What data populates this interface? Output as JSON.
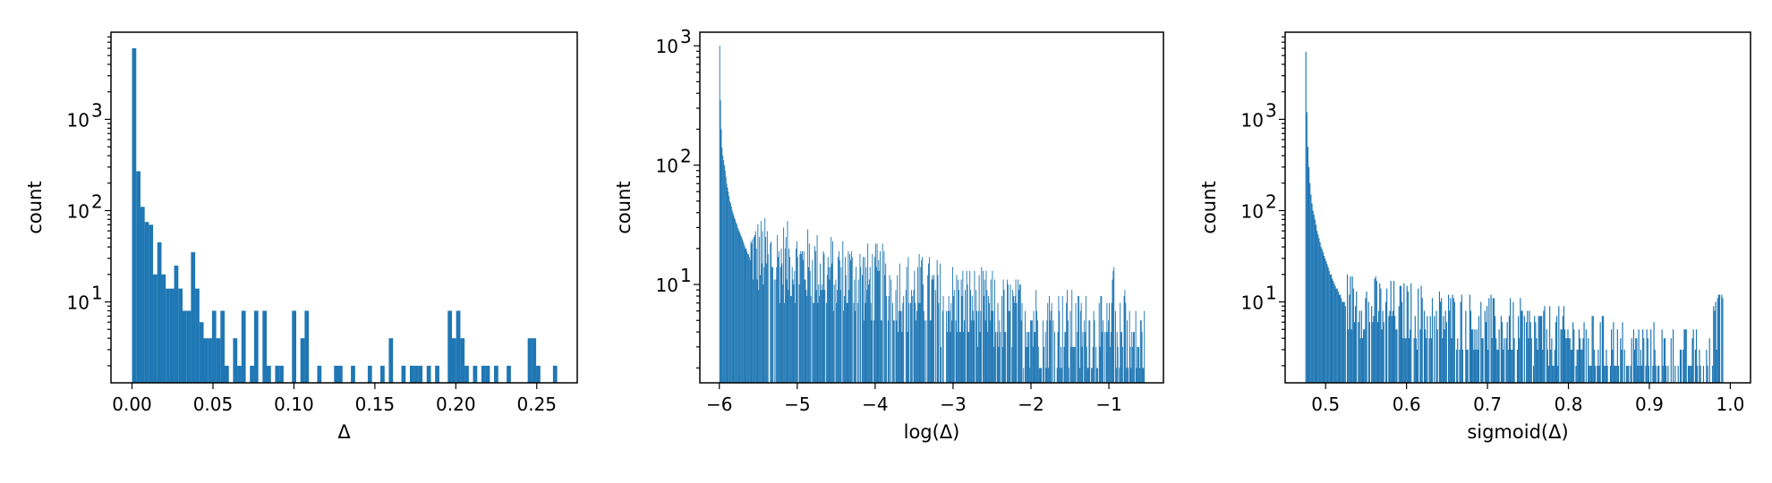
{
  "chart_data": [
    {
      "type": "bar",
      "kind": "histogram",
      "xlabel": "Δ",
      "ylabel": "count",
      "xlim": [
        -0.013,
        0.275
      ],
      "ylim": [
        1.3,
        9000
      ],
      "yscale": "log",
      "xticks": [
        {
          "value": 0.0,
          "label": "0.00"
        },
        {
          "value": 0.05,
          "label": "0.05"
        },
        {
          "value": 0.1,
          "label": "0.10"
        },
        {
          "value": 0.15,
          "label": "0.15"
        },
        {
          "value": 0.2,
          "label": "0.20"
        },
        {
          "value": 0.25,
          "label": "0.25"
        }
      ],
      "yticks": [
        {
          "value": 10,
          "label": "10",
          "exponent": "1"
        },
        {
          "value": 100,
          "label": "10",
          "exponent": "2"
        },
        {
          "value": 1000,
          "label": "10",
          "exponent": "3"
        }
      ],
      "bin_start": 0.0,
      "bin_width": 0.0026,
      "counts": [
        6000,
        270,
        110,
        75,
        70,
        20,
        45,
        20,
        14,
        14,
        25,
        14,
        8,
        8,
        35,
        14,
        6,
        4,
        4,
        8,
        4,
        8,
        2,
        1,
        4,
        2,
        8,
        1,
        2,
        8,
        1,
        8,
        2,
        1,
        2,
        2,
        1,
        1,
        8,
        1,
        4,
        8,
        1,
        1,
        2,
        1,
        1,
        1,
        2,
        2,
        1,
        1,
        2,
        1,
        1,
        1,
        2,
        1,
        1,
        2,
        1,
        4,
        1,
        1,
        2,
        1,
        2,
        2,
        2,
        1,
        2,
        1,
        2,
        1,
        1,
        8,
        4,
        8,
        4,
        2,
        1,
        2,
        1,
        2,
        2,
        1,
        2,
        1,
        1,
        2,
        1,
        1,
        1,
        1,
        4,
        4,
        2,
        1,
        1,
        1,
        2,
        1,
        1
      ]
    },
    {
      "type": "bar",
      "kind": "histogram",
      "xlabel": "log(Δ)",
      "ylabel": "count",
      "xlim": [
        -6.25,
        -0.3
      ],
      "ylim": [
        1.5,
        1300
      ],
      "yscale": "log",
      "xticks": [
        {
          "value": -6,
          "label": "−6"
        },
        {
          "value": -5,
          "label": "−5"
        },
        {
          "value": -4,
          "label": "−4"
        },
        {
          "value": -3,
          "label": "−3"
        },
        {
          "value": -2,
          "label": "−2"
        },
        {
          "value": -1,
          "label": "−1"
        }
      ],
      "yticks": [
        {
          "value": 10,
          "label": "10",
          "exponent": "1"
        },
        {
          "value": 100,
          "label": "10",
          "exponent": "2"
        },
        {
          "value": 1000,
          "label": "10",
          "exponent": "3"
        }
      ],
      "bin_start": -6.0,
      "bin_width": 0.01,
      "counts": [
        1000,
        350,
        200,
        140,
        120,
        110,
        100,
        90,
        80,
        70,
        65,
        60,
        55,
        50,
        48,
        45,
        42,
        40,
        38,
        36,
        35,
        33,
        32,
        30,
        29,
        28,
        27,
        26,
        25,
        24,
        23,
        22,
        21,
        20,
        20,
        19,
        18,
        18,
        17,
        16
      ],
      "tail_range": [
        -5.6,
        -0.55
      ],
      "tail_start_level": 18,
      "tail_end_level": 3,
      "tail_bumps": [
        {
          "x": -0.95,
          "level": 14
        },
        {
          "x": -0.8,
          "level": 10
        }
      ]
    },
    {
      "type": "bar",
      "kind": "histogram",
      "xlabel": "sigmoid(Δ)",
      "ylabel": "count",
      "xlim": [
        0.45,
        1.025
      ],
      "ylim": [
        1.3,
        9000
      ],
      "yscale": "log",
      "xticks": [
        {
          "value": 0.5,
          "label": "0.5"
        },
        {
          "value": 0.6,
          "label": "0.6"
        },
        {
          "value": 0.7,
          "label": "0.7"
        },
        {
          "value": 0.8,
          "label": "0.8"
        },
        {
          "value": 0.9,
          "label": "0.9"
        },
        {
          "value": 1.0,
          "label": "1.0"
        }
      ],
      "yticks": [
        {
          "value": 10,
          "label": "10",
          "exponent": "1"
        },
        {
          "value": 100,
          "label": "10",
          "exponent": "2"
        },
        {
          "value": 1000,
          "label": "10",
          "exponent": "3"
        }
      ],
      "bin_start": 0.475,
      "bin_width": 0.00125,
      "counts": [
        5500,
        1200,
        500,
        300,
        200,
        150,
        120,
        100,
        90,
        80,
        70,
        60,
        55,
        50,
        45,
        40,
        38,
        35,
        32,
        30,
        28,
        26,
        24,
        22,
        20,
        20,
        18,
        17,
        16,
        15,
        14,
        14,
        13,
        12,
        12,
        11,
        10,
        10,
        10,
        9
      ],
      "tail_range": [
        0.525,
        0.99
      ],
      "tail_start_level": 10,
      "tail_end_level": 2,
      "tail_bumps": [
        {
          "x": 0.98,
          "level": 12
        },
        {
          "x": 0.985,
          "level": 14
        },
        {
          "x": 0.99,
          "level": 14
        },
        {
          "x": 0.995,
          "level": 12
        }
      ]
    }
  ],
  "colors": {
    "bar": "#1f77b4",
    "frame": "#000000",
    "text": "#000000",
    "background": "#ffffff"
  }
}
